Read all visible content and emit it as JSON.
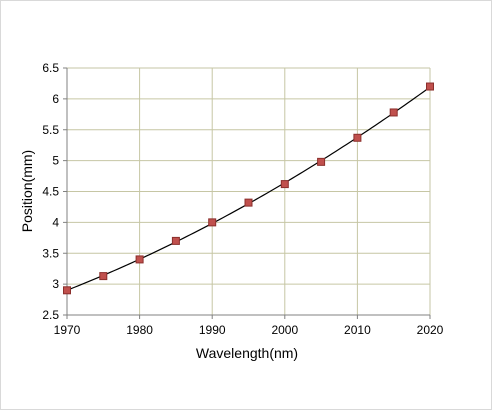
{
  "chart_data": {
    "type": "scatter",
    "title": "",
    "xlabel": "Wavelength(nm)",
    "ylabel": "Position(mm)",
    "xlim": [
      1970,
      2020
    ],
    "ylim": [
      2.5,
      6.5
    ],
    "xticks": [
      1970,
      1980,
      1990,
      2000,
      2010,
      2020
    ],
    "yticks": [
      2.5,
      3,
      3.5,
      4,
      4.5,
      5,
      5.5,
      6,
      6.5
    ],
    "xtick_labels": [
      "1970",
      "1980",
      "1990",
      "2000",
      "2010",
      "2020"
    ],
    "ytick_labels": [
      "2.5",
      "3",
      "3.5",
      "4",
      "4.5",
      "5",
      "5.5",
      "6",
      "6.5"
    ],
    "grid": true,
    "legend": "none",
    "series": [
      {
        "x": [
          1970,
          1975,
          1980,
          1985,
          1990,
          1995,
          2000,
          2005,
          2010,
          2015,
          2020
        ],
        "y": [
          2.9,
          3.13,
          3.4,
          3.7,
          4.0,
          4.32,
          4.62,
          4.98,
          5.37,
          5.78,
          6.2
        ],
        "marker": "square",
        "marker_color": "#c0504d",
        "trendline": true,
        "trendline_color": "#000000"
      }
    ],
    "colors": {
      "grid": "#c6c6a4",
      "axis": "#808080"
    }
  }
}
